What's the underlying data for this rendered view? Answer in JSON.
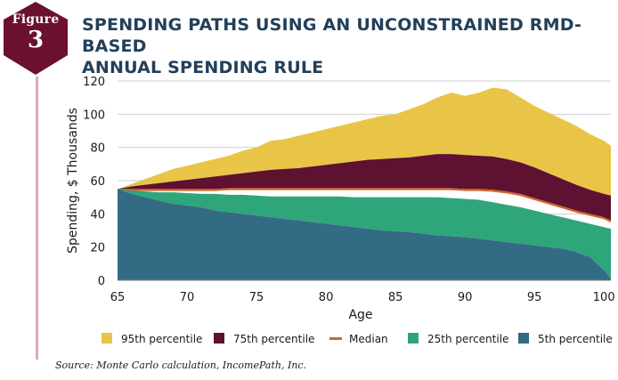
{
  "figure": {
    "label": "Figure",
    "number": "3",
    "badge_color": "#6b1030"
  },
  "title": {
    "line1": "SPENDING PATHS USING AN UNCONSTRAINED RMD-BASED",
    "line2": "ANNUAL SPENDING RULE"
  },
  "source": "Source: Monte Carlo calculation, IncomePath, Inc.",
  "chart_data": {
    "type": "area",
    "xlabel": "Age",
    "ylabel": "Spending, $ Thousands",
    "xlim": [
      65,
      100.5
    ],
    "ylim": [
      0,
      120
    ],
    "xticks": [
      65,
      70,
      75,
      80,
      85,
      90,
      95,
      100
    ],
    "yticks": [
      0,
      20,
      40,
      60,
      80,
      100,
      120
    ],
    "x": [
      65,
      66,
      67,
      68,
      69,
      70,
      71,
      72,
      73,
      74,
      75,
      76,
      77,
      78,
      79,
      80,
      81,
      82,
      83,
      84,
      85,
      86,
      87,
      88,
      89,
      90,
      91,
      92,
      93,
      94,
      95,
      96,
      97,
      98,
      99,
      100,
      100.5
    ],
    "series": [
      {
        "name": "95th percentile",
        "color": "#e8c547",
        "values": [
          55,
          58,
          61,
          64,
          67,
          69,
          71,
          73,
          75,
          78,
          80,
          84,
          85,
          87,
          89,
          91,
          93,
          95,
          97,
          99,
          100,
          103,
          106,
          110,
          113,
          111,
          113,
          116,
          115,
          110,
          105,
          101,
          97,
          93,
          88,
          84,
          81
        ]
      },
      {
        "name": "75th percentile",
        "color": "#5e1130",
        "values": [
          55,
          56.5,
          57.5,
          58.5,
          59.5,
          60.5,
          61.5,
          62.5,
          63.5,
          64.5,
          65.5,
          66.5,
          67,
          67.5,
          68.5,
          69.5,
          70.5,
          71.5,
          72.5,
          73,
          73.5,
          74,
          75,
          76,
          76,
          75.5,
          75,
          74.5,
          73,
          71,
          68,
          64.5,
          61,
          57.5,
          54.5,
          52,
          51
        ]
      },
      {
        "name": "Median",
        "color": "#d2642a",
        "values": [
          55,
          55,
          55,
          55,
          55,
          55,
          55,
          55,
          55.5,
          55.5,
          55.5,
          55.5,
          55.5,
          55.5,
          55.5,
          55.5,
          55.5,
          55.5,
          55.5,
          55.5,
          55.5,
          55.5,
          55.5,
          55.5,
          55.5,
          55,
          55,
          54.5,
          53.5,
          52,
          49.5,
          47,
          44.5,
          42,
          40,
          38,
          36
        ]
      },
      {
        "name": "25th percentile",
        "color": "#2fa57a",
        "values": [
          55,
          54,
          53.5,
          53,
          53,
          52.5,
          52,
          52,
          51.5,
          51.5,
          51,
          50.5,
          50.5,
          50.5,
          50.5,
          50.5,
          50.5,
          50,
          50,
          50,
          50,
          50,
          50,
          50,
          49.5,
          49,
          48.5,
          47,
          45.5,
          44,
          42,
          40,
          38,
          36,
          34,
          32,
          31
        ]
      },
      {
        "name": "5th percentile",
        "color": "#336a84",
        "values": [
          55,
          52,
          50,
          48,
          46,
          45,
          44,
          42,
          41,
          40,
          39,
          38,
          37,
          36,
          35,
          34,
          33,
          32,
          31,
          30,
          29.5,
          29,
          28,
          27,
          26.5,
          26,
          25,
          24,
          23,
          22,
          21,
          20,
          19,
          17,
          14,
          6,
          1
        ]
      }
    ]
  }
}
